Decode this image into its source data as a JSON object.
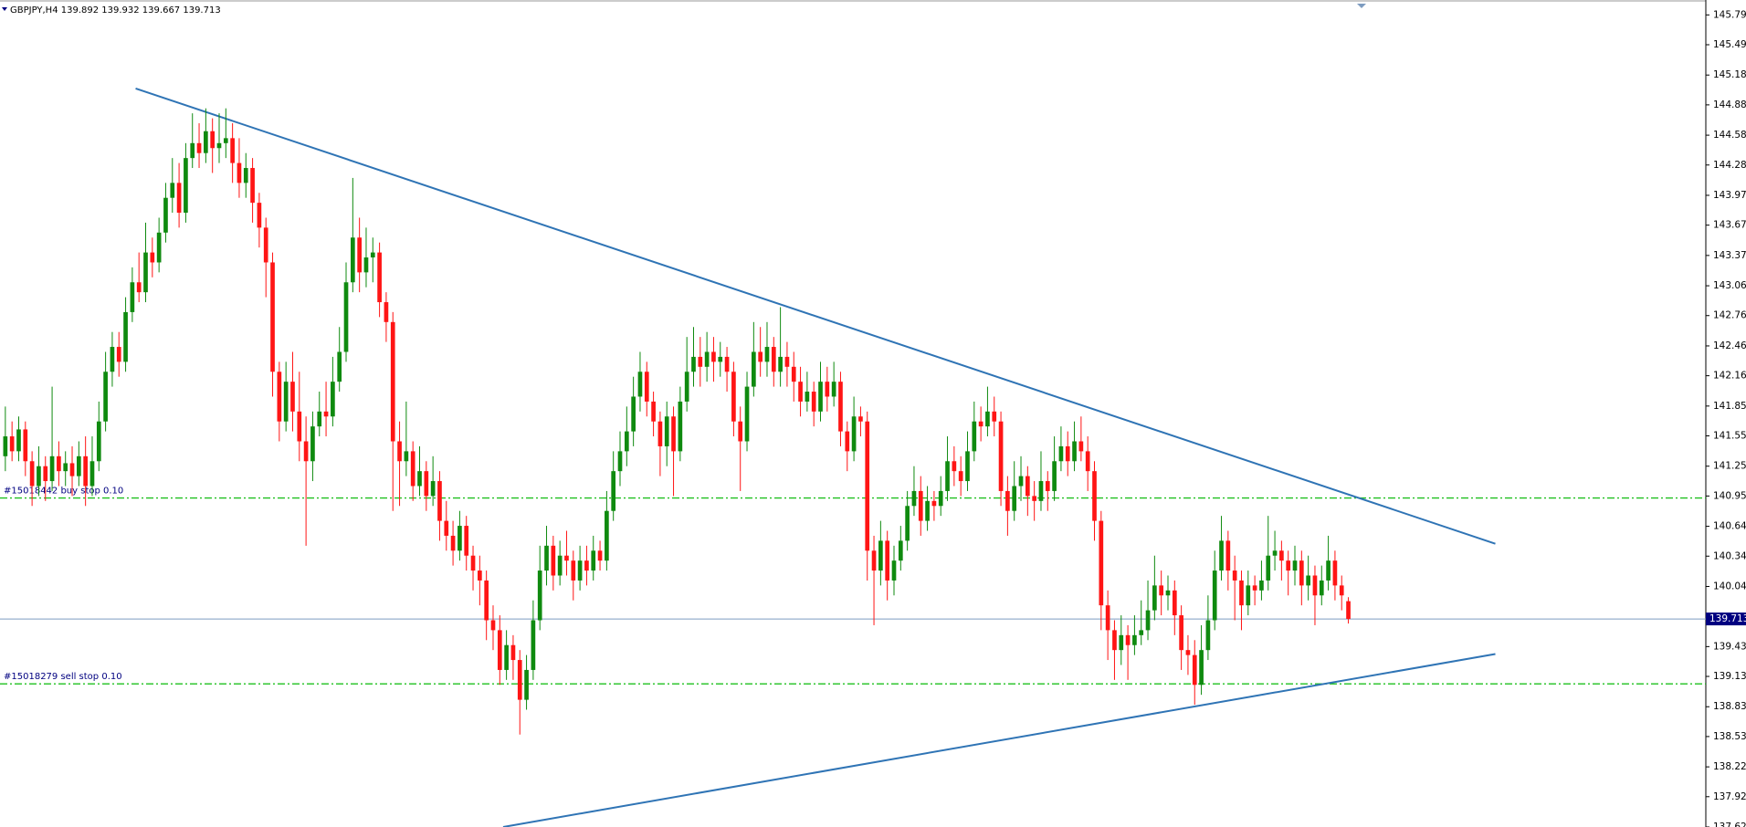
{
  "chart_data": {
    "type": "candlestick",
    "title": "GBPJPY,H4  139.892 139.932 139.667 139.713",
    "up_color": "#0f8a0f",
    "down_color": "#ff1515",
    "ylim": [
      137.62,
      145.94
    ],
    "xlim": [
      -0.8,
      254.5
    ],
    "yticks": [
      {
        "value": 145.79,
        "label": "145.790"
      },
      {
        "value": 145.49,
        "label": "145.490"
      },
      145.185,
      144.885,
      {
        "value": 144.58,
        "label": "144.580"
      },
      {
        "value": 144.28,
        "label": "144.280"
      },
      143.975,
      143.675,
      {
        "value": 143.37,
        "label": "143.370"
      },
      143.065,
      142.765,
      {
        "value": 142.46,
        "label": "142.460"
      },
      {
        "value": 142.16,
        "label": "142.160"
      },
      141.855,
      141.555,
      {
        "value": 141.25,
        "label": "141.250"
      },
      {
        "value": 140.95,
        "label": "140.950"
      },
      140.645,
      140.345,
      {
        "value": 140.04,
        "label": "140.040"
      },
      139.435,
      139.135,
      {
        "value": 138.83,
        "label": "138.830"
      },
      {
        "value": 138.53,
        "label": "138.530"
      },
      138.225,
      137.925,
      {
        "value": 137.62,
        "label": "137.620"
      }
    ],
    "ohlc": [
      [
        141.35,
        141.85,
        141.2,
        141.55
      ],
      [
        141.55,
        141.7,
        141.3,
        141.4
      ],
      [
        141.4,
        141.75,
        141.3,
        141.62
      ],
      [
        141.62,
        141.7,
        141.15,
        141.3
      ],
      [
        141.3,
        141.4,
        140.85,
        141.05
      ],
      [
        141.05,
        141.45,
        140.95,
        141.25
      ],
      [
        141.25,
        141.35,
        140.9,
        141.1
      ],
      [
        141.1,
        142.05,
        141.0,
        141.35
      ],
      [
        141.35,
        141.5,
        141.05,
        141.2
      ],
      [
        141.2,
        141.4,
        141.05,
        141.28
      ],
      [
        141.28,
        141.45,
        140.95,
        141.15
      ],
      [
        141.15,
        141.5,
        141.05,
        141.35
      ],
      [
        141.35,
        141.55,
        140.85,
        141.05
      ],
      [
        141.05,
        141.55,
        140.95,
        141.3
      ],
      [
        141.3,
        141.9,
        141.2,
        141.7
      ],
      [
        141.7,
        142.4,
        141.6,
        142.2
      ],
      [
        142.2,
        142.6,
        142.05,
        142.45
      ],
      [
        142.45,
        142.6,
        142.15,
        142.3
      ],
      [
        142.3,
        142.95,
        142.2,
        142.8
      ],
      [
        142.8,
        143.25,
        142.7,
        143.1
      ],
      [
        143.1,
        143.4,
        142.9,
        143.0
      ],
      [
        143.0,
        143.7,
        142.9,
        143.4
      ],
      [
        143.4,
        143.55,
        143.15,
        143.3
      ],
      [
        143.3,
        143.75,
        143.2,
        143.6
      ],
      [
        143.6,
        144.1,
        143.5,
        143.95
      ],
      [
        143.95,
        144.35,
        143.8,
        144.1
      ],
      [
        144.1,
        144.3,
        143.65,
        143.8
      ],
      [
        143.8,
        144.5,
        143.7,
        144.35
      ],
      [
        144.35,
        144.8,
        144.25,
        144.5
      ],
      [
        144.5,
        144.7,
        144.25,
        144.4
      ],
      [
        144.4,
        144.85,
        144.3,
        144.62
      ],
      [
        144.62,
        144.75,
        144.2,
        144.45
      ],
      [
        144.45,
        144.8,
        144.3,
        144.5
      ],
      [
        144.5,
        144.85,
        144.35,
        144.55
      ],
      [
        144.55,
        144.7,
        144.1,
        144.3
      ],
      [
        144.3,
        144.55,
        143.95,
        144.1
      ],
      [
        144.1,
        144.4,
        143.95,
        144.25
      ],
      [
        144.25,
        144.35,
        143.7,
        143.9
      ],
      [
        143.9,
        144.0,
        143.45,
        143.65
      ],
      [
        143.65,
        143.75,
        142.95,
        143.3
      ],
      [
        143.3,
        143.4,
        141.95,
        142.2
      ],
      [
        142.2,
        142.3,
        141.5,
        141.7
      ],
      [
        141.7,
        142.3,
        141.6,
        142.1
      ],
      [
        142.1,
        142.4,
        141.6,
        141.8
      ],
      [
        141.8,
        142.2,
        141.3,
        141.5
      ],
      [
        141.5,
        141.75,
        140.45,
        141.3
      ],
      [
        141.3,
        141.8,
        141.1,
        141.65
      ],
      [
        141.65,
        142.0,
        141.55,
        141.8
      ],
      [
        141.8,
        142.1,
        141.55,
        141.75
      ],
      [
        141.75,
        142.35,
        141.65,
        142.1
      ],
      [
        142.1,
        142.65,
        142.0,
        142.4
      ],
      [
        142.4,
        143.3,
        142.3,
        143.1
      ],
      [
        143.1,
        144.15,
        143.0,
        143.55
      ],
      [
        143.55,
        143.75,
        143.0,
        143.2
      ],
      [
        143.2,
        143.65,
        143.05,
        143.35
      ],
      [
        143.35,
        143.55,
        143.1,
        143.4
      ],
      [
        143.4,
        143.5,
        142.75,
        142.9
      ],
      [
        142.9,
        143.0,
        142.5,
        142.7
      ],
      [
        142.7,
        142.8,
        140.8,
        141.5
      ],
      [
        141.5,
        141.7,
        140.85,
        141.3
      ],
      [
        141.3,
        141.9,
        141.15,
        141.4
      ],
      [
        141.4,
        141.5,
        140.9,
        141.05
      ],
      [
        141.05,
        141.45,
        140.95,
        141.2
      ],
      [
        141.2,
        141.3,
        140.8,
        140.95
      ],
      [
        140.95,
        141.35,
        140.85,
        141.1
      ],
      [
        141.1,
        141.2,
        140.5,
        140.7
      ],
      [
        140.7,
        140.9,
        140.4,
        140.55
      ],
      [
        140.55,
        140.7,
        140.25,
        140.4
      ],
      [
        140.4,
        140.8,
        140.3,
        140.65
      ],
      [
        140.65,
        140.75,
        140.2,
        140.35
      ],
      [
        140.35,
        140.45,
        140.0,
        140.2
      ],
      [
        140.2,
        140.35,
        139.85,
        140.1
      ],
      [
        140.1,
        140.2,
        139.5,
        139.7
      ],
      [
        139.7,
        139.85,
        139.4,
        139.6
      ],
      [
        139.6,
        139.75,
        139.05,
        139.2
      ],
      [
        139.2,
        139.6,
        139.1,
        139.45
      ],
      [
        139.45,
        139.55,
        139.1,
        139.3
      ],
      [
        139.3,
        139.4,
        138.55,
        138.9
      ],
      [
        138.9,
        139.35,
        138.8,
        139.2
      ],
      [
        139.2,
        139.9,
        139.1,
        139.7
      ],
      [
        139.7,
        140.45,
        139.6,
        140.2
      ],
      [
        140.2,
        140.65,
        140.05,
        140.45
      ],
      [
        140.45,
        140.55,
        140.0,
        140.15
      ],
      [
        140.15,
        140.5,
        140.05,
        140.35
      ],
      [
        140.35,
        140.6,
        140.15,
        140.3
      ],
      [
        140.3,
        140.4,
        139.9,
        140.1
      ],
      [
        140.1,
        140.45,
        140.0,
        140.3
      ],
      [
        140.3,
        140.45,
        140.05,
        140.2
      ],
      [
        140.2,
        140.55,
        140.1,
        140.4
      ],
      [
        140.4,
        140.5,
        140.2,
        140.3
      ],
      [
        140.3,
        141.0,
        140.2,
        140.8
      ],
      [
        140.8,
        141.4,
        140.7,
        141.2
      ],
      [
        141.2,
        141.6,
        141.05,
        141.4
      ],
      [
        141.4,
        141.85,
        141.25,
        141.6
      ],
      [
        141.6,
        142.15,
        141.45,
        141.95
      ],
      [
        141.95,
        142.4,
        141.8,
        142.2
      ],
      [
        142.2,
        142.3,
        141.75,
        141.9
      ],
      [
        141.9,
        142.0,
        141.55,
        141.7
      ],
      [
        141.7,
        141.8,
        141.15,
        141.45
      ],
      [
        141.45,
        141.9,
        141.25,
        141.75
      ],
      [
        141.75,
        141.85,
        140.95,
        141.4
      ],
      [
        141.4,
        142.05,
        141.3,
        141.9
      ],
      [
        141.9,
        142.55,
        141.8,
        142.2
      ],
      [
        142.2,
        142.65,
        142.05,
        142.35
      ],
      [
        142.35,
        142.55,
        142.05,
        142.25
      ],
      [
        142.25,
        142.6,
        142.1,
        142.4
      ],
      [
        142.4,
        142.55,
        142.1,
        142.3
      ],
      [
        142.3,
        142.5,
        142.15,
        142.35
      ],
      [
        142.35,
        142.45,
        142.0,
        142.2
      ],
      [
        142.2,
        142.3,
        141.55,
        141.7
      ],
      [
        141.7,
        141.85,
        141.0,
        141.5
      ],
      [
        141.5,
        142.2,
        141.4,
        142.05
      ],
      [
        142.05,
        142.7,
        141.95,
        142.4
      ],
      [
        142.4,
        142.65,
        142.15,
        142.3
      ],
      [
        142.3,
        142.7,
        142.15,
        142.45
      ],
      [
        142.45,
        142.55,
        142.05,
        142.2
      ],
      [
        142.2,
        142.85,
        142.05,
        142.35
      ],
      [
        142.35,
        142.5,
        142.05,
        142.25
      ],
      [
        142.25,
        142.4,
        141.9,
        142.1
      ],
      [
        142.1,
        142.25,
        141.75,
        141.9
      ],
      [
        141.9,
        142.2,
        141.8,
        142.0
      ],
      [
        142.0,
        142.1,
        141.65,
        141.8
      ],
      [
        141.8,
        142.3,
        141.7,
        142.1
      ],
      [
        142.1,
        142.25,
        141.8,
        141.95
      ],
      [
        141.95,
        142.3,
        141.85,
        142.1
      ],
      [
        142.1,
        142.2,
        141.45,
        141.6
      ],
      [
        141.6,
        141.7,
        141.2,
        141.4
      ],
      [
        141.4,
        141.95,
        141.3,
        141.75
      ],
      [
        141.75,
        141.85,
        141.55,
        141.7
      ],
      [
        141.7,
        141.8,
        140.1,
        140.4
      ],
      [
        140.4,
        140.55,
        139.65,
        140.2
      ],
      [
        140.2,
        140.7,
        140.05,
        140.5
      ],
      [
        140.5,
        140.6,
        139.9,
        140.1
      ],
      [
        140.1,
        140.45,
        139.95,
        140.3
      ],
      [
        140.3,
        140.65,
        140.2,
        140.5
      ],
      [
        140.5,
        141.0,
        140.4,
        140.85
      ],
      [
        140.85,
        141.25,
        140.75,
        141.0
      ],
      [
        141.0,
        141.15,
        140.55,
        140.7
      ],
      [
        140.7,
        141.05,
        140.6,
        140.9
      ],
      [
        140.9,
        141.0,
        140.7,
        140.85
      ],
      [
        140.85,
        141.15,
        140.75,
        141.0
      ],
      [
        141.0,
        141.55,
        140.9,
        141.3
      ],
      [
        141.3,
        141.45,
        141.05,
        141.2
      ],
      [
        141.2,
        141.35,
        140.95,
        141.1
      ],
      [
        141.1,
        141.6,
        141.0,
        141.4
      ],
      [
        141.4,
        141.9,
        141.3,
        141.7
      ],
      [
        141.7,
        141.85,
        141.5,
        141.65
      ],
      [
        141.65,
        142.05,
        141.55,
        141.8
      ],
      [
        141.8,
        141.95,
        141.55,
        141.7
      ],
      [
        141.7,
        141.8,
        140.85,
        141.0
      ],
      [
        141.0,
        141.15,
        140.55,
        140.8
      ],
      [
        140.8,
        141.3,
        140.7,
        141.05
      ],
      [
        141.05,
        141.35,
        140.9,
        141.15
      ],
      [
        141.15,
        141.25,
        140.75,
        140.95
      ],
      [
        140.95,
        141.1,
        140.7,
        140.9
      ],
      [
        140.9,
        141.4,
        140.8,
        141.1
      ],
      [
        141.1,
        141.2,
        140.8,
        141.0
      ],
      [
        141.0,
        141.55,
        140.9,
        141.3
      ],
      [
        141.3,
        141.65,
        141.2,
        141.45
      ],
      [
        141.45,
        141.6,
        141.15,
        141.3
      ],
      [
        141.3,
        141.7,
        141.2,
        141.5
      ],
      [
        141.5,
        141.75,
        141.3,
        141.4
      ],
      [
        141.4,
        141.55,
        141.0,
        141.2
      ],
      [
        141.2,
        141.3,
        140.5,
        140.7
      ],
      [
        140.7,
        140.8,
        139.6,
        139.85
      ],
      [
        139.85,
        140.0,
        139.3,
        139.6
      ],
      [
        139.6,
        139.7,
        139.1,
        139.4
      ],
      [
        139.4,
        139.75,
        139.25,
        139.55
      ],
      [
        139.55,
        139.65,
        139.1,
        139.45
      ],
      [
        139.45,
        139.75,
        139.35,
        139.55
      ],
      [
        139.55,
        139.9,
        139.45,
        139.6
      ],
      [
        139.6,
        140.1,
        139.5,
        139.8
      ],
      [
        139.8,
        140.35,
        139.7,
        140.05
      ],
      [
        140.05,
        140.2,
        139.75,
        139.95
      ],
      [
        139.95,
        140.15,
        139.8,
        140.0
      ],
      [
        140.0,
        140.1,
        139.55,
        139.75
      ],
      [
        139.75,
        139.85,
        139.2,
        139.4
      ],
      [
        139.4,
        139.55,
        139.15,
        139.35
      ],
      [
        139.35,
        139.5,
        138.85,
        139.05
      ],
      [
        139.05,
        139.65,
        138.95,
        139.4
      ],
      [
        139.4,
        139.95,
        139.3,
        139.7
      ],
      [
        139.7,
        140.4,
        139.6,
        140.2
      ],
      [
        140.2,
        140.75,
        140.1,
        140.5
      ],
      [
        140.5,
        140.6,
        140.0,
        140.2
      ],
      [
        140.2,
        140.35,
        139.7,
        140.1
      ],
      [
        140.1,
        140.2,
        139.6,
        139.85
      ],
      [
        139.85,
        140.2,
        139.75,
        140.05
      ],
      [
        140.05,
        140.15,
        139.85,
        140.0
      ],
      [
        140.0,
        140.3,
        139.9,
        140.1
      ],
      [
        140.1,
        140.75,
        140.0,
        140.35
      ],
      [
        140.35,
        140.6,
        140.2,
        140.4
      ],
      [
        140.4,
        140.5,
        140.1,
        140.3
      ],
      [
        140.3,
        140.4,
        139.95,
        140.2
      ],
      [
        140.2,
        140.45,
        140.05,
        140.3
      ],
      [
        140.3,
        140.4,
        139.85,
        140.05
      ],
      [
        140.05,
        140.35,
        139.9,
        140.15
      ],
      [
        140.15,
        140.25,
        139.65,
        139.95
      ],
      [
        139.95,
        140.25,
        139.85,
        140.1
      ],
      [
        140.1,
        140.55,
        140.0,
        140.3
      ],
      [
        140.3,
        140.4,
        139.9,
        140.05
      ],
      [
        140.05,
        140.15,
        139.8,
        139.95
      ],
      [
        139.892,
        139.932,
        139.667,
        139.713
      ]
    ],
    "price_line_color": "#7d9cc0",
    "price_label_bg": "#000080",
    "trendline_color": "#2f74b5",
    "trendlines": [
      {
        "x": [
          19.5,
          223
        ],
        "y": [
          145.05,
          140.47
        ]
      },
      {
        "x": [
          74.5,
          223
        ],
        "y": [
          137.62,
          139.36
        ]
      }
    ],
    "order_color": "#1fc01f",
    "orders": [
      {
        "label": "#15018442 buy stop 0.10",
        "price": 140.93
      },
      {
        "label": "#15018279 sell stop 0.10",
        "price": 139.06
      }
    ]
  }
}
